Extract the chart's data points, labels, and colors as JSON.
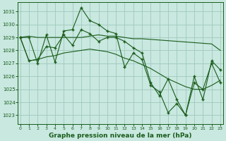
{
  "title": "Graphe pression niveau de la mer (hPa)",
  "bg_color": "#c8e8e0",
  "grid_color": "#a0c8bc",
  "line_color": "#1a5c1a",
  "xlim": [
    -0.3,
    23.3
  ],
  "ylim": [
    1022.3,
    1031.7
  ],
  "yticks": [
    1023,
    1024,
    1025,
    1026,
    1027,
    1028,
    1029,
    1030,
    1031
  ],
  "xticks": [
    0,
    1,
    2,
    3,
    4,
    5,
    6,
    7,
    8,
    9,
    10,
    11,
    12,
    13,
    14,
    15,
    16,
    17,
    18,
    19,
    20,
    21,
    22,
    23
  ],
  "series_spiky1": [
    1029.0,
    1029.0,
    1027.0,
    1029.2,
    1027.1,
    1029.5,
    1029.6,
    1031.3,
    1030.3,
    1030.0,
    1029.5,
    1029.3,
    1026.7,
    1027.8,
    1027.3,
    1025.3,
    1024.8,
    1023.2,
    1023.9,
    1023.0,
    1025.5,
    1025.0,
    1027.0,
    1025.5
  ],
  "series_upper_flat": [
    1029.0,
    1029.1,
    1029.0,
    1029.0,
    1029.0,
    1029.0,
    1029.0,
    1029.0,
    1029.1,
    1029.2,
    1029.1,
    1029.1,
    1029.0,
    1028.9,
    1028.9,
    1028.85,
    1028.8,
    1028.75,
    1028.7,
    1028.65,
    1028.6,
    1028.55,
    1028.5,
    1028.0
  ],
  "series_spiky2": [
    1029.0,
    1027.2,
    1027.3,
    1028.3,
    1028.2,
    1029.2,
    1028.4,
    1029.6,
    1029.3,
    1028.7,
    1029.0,
    1029.0,
    1028.7,
    1028.2,
    1027.8,
    1025.5,
    1024.5,
    1025.8,
    1024.2,
    1023.0,
    1026.0,
    1024.2,
    1027.2,
    1026.5
  ],
  "series_lower_slope": [
    1029.0,
    1027.2,
    1027.3,
    1027.5,
    1027.6,
    1027.8,
    1027.9,
    1028.0,
    1028.1,
    1028.0,
    1027.9,
    1027.7,
    1027.4,
    1027.2,
    1026.9,
    1026.6,
    1026.2,
    1025.8,
    1025.5,
    1025.2,
    1025.0,
    1025.0,
    1025.3,
    1025.7
  ]
}
